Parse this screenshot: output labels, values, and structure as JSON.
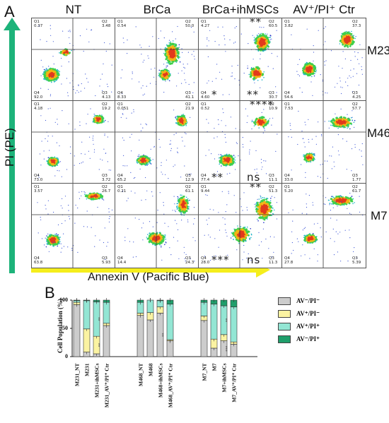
{
  "panel_a": {
    "letter": "A",
    "y_axis_label": "PI (PE)",
    "x_axis_label": "Annexin V (Pacific Blue)",
    "columns": [
      "NT",
      "BrCa",
      "BrCa+ihMSCs",
      "AV⁺/PI⁺ Ctr"
    ],
    "rows": [
      "M231",
      "M468",
      "M7"
    ],
    "quadrants": [
      [
        {
          "q1": "Q1\n0.37",
          "q2": "Q2\n3.48",
          "q3": "Q3\n4.13",
          "q4": "Q4\n92.0"
        },
        {
          "q1": "Q1\n0.54",
          "q2": "Q2\n50.0",
          "q3": "Q3\n41.1",
          "q4": "Q4\n8.33"
        },
        {
          "q1": "Q1\n4.27",
          "q2": "Q2\n60.5",
          "q3": "Q3\n30.7",
          "q4": "Q4\n4.60"
        },
        {
          "q1": "Q1\n3.82",
          "q2": "Q2\n37.3",
          "q3": "Q3\n4.25",
          "q4": "Q4\n54.6"
        }
      ],
      [
        {
          "q1": "Q1\n4.18",
          "q2": "Q2\n19.2",
          "q3": "Q3\n3.72",
          "q4": "Q4\n73.0"
        },
        {
          "q1": "Q1\n0.051",
          "q2": "Q2\n21.9",
          "q3": "Q3\n12.9",
          "q4": "Q4\n65.2"
        },
        {
          "q1": "Q1\n0.52",
          "q2": "Q2\n10.9",
          "q3": "Q3\n11.1",
          "q4": "Q4\n77.4"
        },
        {
          "q1": "Q1\n7.53",
          "q2": "Q2\n57.7",
          "q3": "Q3\n1.77",
          "q4": "Q4\n33.0"
        }
      ],
      [
        {
          "q1": "Q1\n3.57",
          "q2": "Q2\n26.7",
          "q3": "Q3\n5.93",
          "q4": "Q4\n63.8"
        },
        {
          "q1": "Q1\n0.21",
          "q2": "Q2\n61.1",
          "q3": "Q3\n24.3",
          "q4": "Q4\n14.4"
        },
        {
          "q1": "Q1\n9.44",
          "q2": "Q2\n51.3",
          "q3": "Q3\n11.3",
          "q4": "Q4\n28.0"
        },
        {
          "q1": "Q1\n5.20",
          "q2": "Q2\n61.7",
          "q3": "Q3\n5.39",
          "q4": "Q4\n27.8"
        }
      ]
    ],
    "significance": [
      {
        "row": 0,
        "text_q2": "**",
        "text_q3": "**",
        "text_q4": "*"
      },
      {
        "row": 1,
        "text_q2": "****",
        "text_q3": "ns",
        "text_q4": "**"
      },
      {
        "row": 2,
        "text_q2": "**",
        "text_q3": "ns",
        "text_q4": "***"
      }
    ]
  },
  "panel_b": {
    "letter": "B",
    "y_axis_label": "Cell Population (%)",
    "y_ticks": [
      "0",
      "50",
      "100"
    ],
    "legend": [
      {
        "label": "AV⁻/PI⁻",
        "color": "#cccccc"
      },
      {
        "label": "AV⁺/PI⁻",
        "color": "#fbf3a2"
      },
      {
        "label": "AV⁺/PI⁺",
        "color": "#93e6d4"
      },
      {
        "label": "AV⁻/PI⁺",
        "color": "#1f9e6b"
      }
    ],
    "chart_data": {
      "type": "bar",
      "stacked": true,
      "ylim": [
        0,
        100
      ],
      "categories": [
        "M231_NT",
        "M231",
        "M231+ihMSCs",
        "M231_AV⁺/PI⁺ Ctr",
        "M468_NT",
        "M468",
        "M468+ihMSCs",
        "M468_AV⁺/PI⁺ Ctr",
        "M7_NT",
        "M7",
        "M7+ihMSCs",
        "M7_AV⁺/PI⁺ Ctr"
      ],
      "series": [
        {
          "name": "AV⁻/PI⁻",
          "values": [
            92,
            8,
            5,
            55,
            73,
            65,
            77,
            28,
            64,
            15,
            28,
            22
          ]
        },
        {
          "name": "AV⁺/PI⁻",
          "values": [
            4,
            41,
            31,
            4,
            4,
            13,
            11,
            2,
            8,
            16,
            11,
            4
          ]
        },
        {
          "name": "AV⁺/PI⁺",
          "values": [
            3,
            50,
            61,
            37,
            19,
            22,
            11,
            63,
            24,
            62,
            51,
            62
          ]
        },
        {
          "name": "AV⁻/PI⁺",
          "values": [
            1,
            1,
            3,
            4,
            4,
            0,
            1,
            7,
            4,
            7,
            10,
            12
          ]
        }
      ],
      "significance": [
        {
          "category": "M231+ihMSCs",
          "series": "AV⁺/PI⁺",
          "text": "**"
        },
        {
          "category": "M231+ihMSCs",
          "series": "AV⁺/PI⁻",
          "text": "**"
        },
        {
          "category": "M468+ihMSCs",
          "series": "AV⁻/PI⁻",
          "text": "**"
        },
        {
          "category": "M7+ihMSCs",
          "series": "AV⁺/PI⁺",
          "text": "**"
        },
        {
          "category": "M7+ihMSCs",
          "series": "AV⁻/PI⁻",
          "text": "***"
        }
      ]
    }
  },
  "colors": {
    "arrow_green": "#1db37a",
    "arrow_yellow": "#f5ee1c"
  }
}
